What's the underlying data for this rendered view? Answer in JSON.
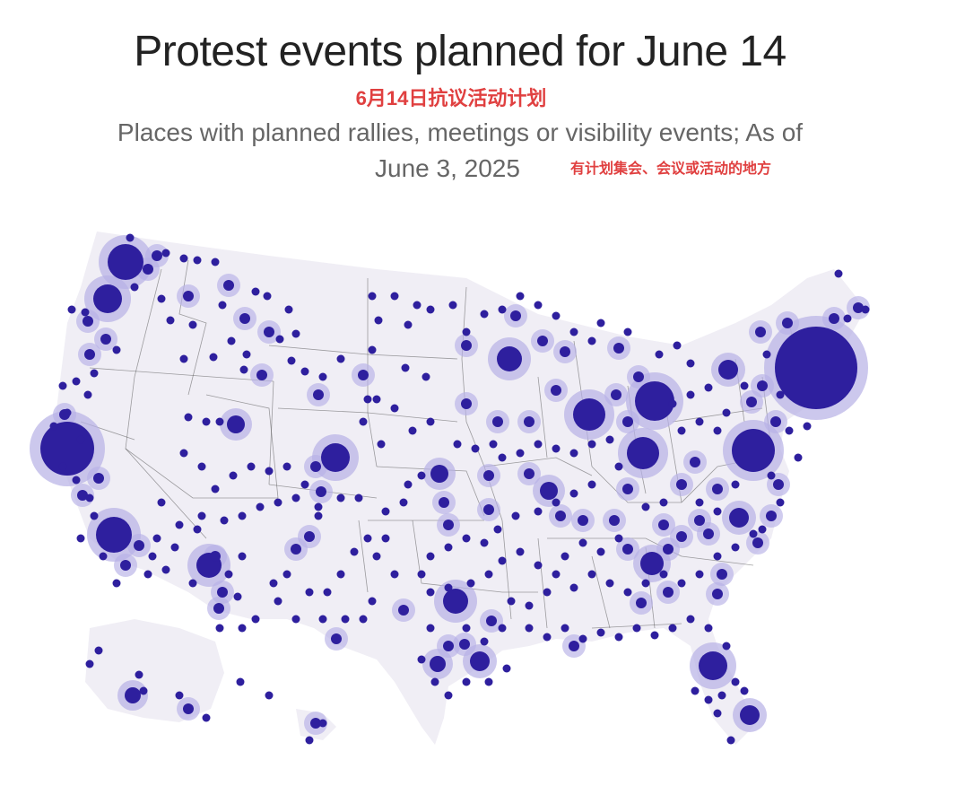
{
  "header": {
    "title": "Protest events planned for June 14",
    "subtitle_cn": "6月14日抗议活动计划",
    "subtitle": "Places with planned rallies, meetings or visibility events; As of",
    "subtitle_date": "June 3, 2025",
    "subtitle_date_cn": "有计划集会、会议或活动的地方"
  },
  "colors": {
    "land": "#f0eef5",
    "state_border": "#555555",
    "dot": "#2e1f9e",
    "halo": "#b7b0e6"
  },
  "chart_data": {
    "type": "scatter",
    "markers": "proportional circles, one per event location",
    "basemap": "contiguous United States with state borders, Alaska and Hawaii insets"
  }
}
